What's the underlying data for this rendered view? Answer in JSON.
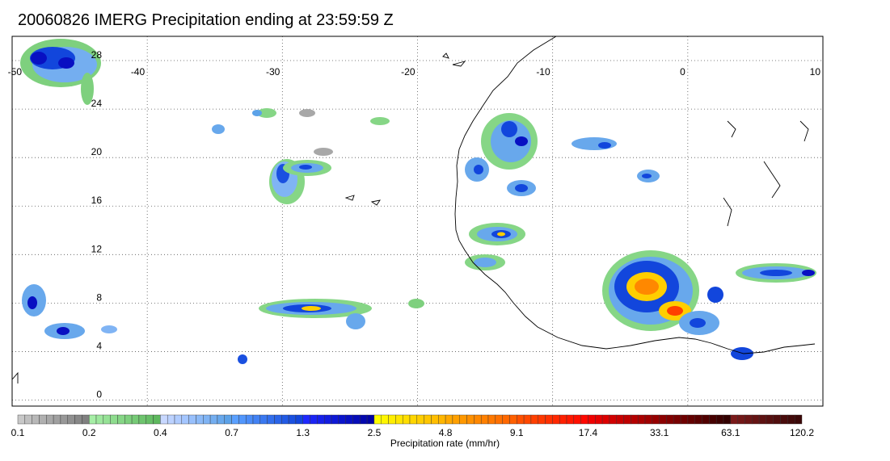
{
  "title": "20060826 IMERG Precipitation ending at 23:59:59 Z",
  "longitude_labels": [
    "-50",
    "-40",
    "-30",
    "-20",
    "-10",
    "0",
    "10"
  ],
  "latitude_labels": [
    "28",
    "24",
    "20",
    "16",
    "12",
    "8",
    "4",
    "0"
  ],
  "map": {
    "lon_range": [
      -50,
      10
    ],
    "lat_range": [
      -0.5,
      30
    ],
    "grid": "dotted",
    "coastline_color": "#000000"
  },
  "legend": {
    "caption": "Precipitation rate (mm/hr)",
    "tick_labels": [
      "0.1",
      "0.2",
      "0.4",
      "0.7",
      "1.3",
      "2.5",
      "4.8",
      "9.1",
      "17.4",
      "33.1",
      "63.1",
      "120.2"
    ],
    "color_groups": [
      {
        "from": "0.1",
        "to": "0.2",
        "shades": [
          "#c8c8c8",
          "#c0c0c0",
          "#b8b8b8",
          "#b0b0b0",
          "#a8a8a8",
          "#a0a0a0",
          "#989898",
          "#909090",
          "#888888",
          "#808080"
        ]
      },
      {
        "from": "0.2",
        "to": "0.4",
        "shades": [
          "#a6eea6",
          "#9ee89e",
          "#96e296",
          "#8edc8e",
          "#86d686",
          "#7ed07e",
          "#76ca76",
          "#6ec46e",
          "#66be66",
          "#5eb85e"
        ]
      },
      {
        "from": "0.4",
        "to": "0.7",
        "shades": [
          "#c8d8ff",
          "#bcd2ff",
          "#b0ccff",
          "#a4c6ff",
          "#98c0fc",
          "#8cbaf8",
          "#80b4f4",
          "#74aef0",
          "#68a8ec",
          "#5ca2e8"
        ]
      },
      {
        "from": "0.7",
        "to": "1.3",
        "shades": [
          "#5aa0ff",
          "#5296fc",
          "#4a8cf8",
          "#4282f4",
          "#3a78f0",
          "#326eec",
          "#2a64e8",
          "#225ae4",
          "#1a50e0",
          "#1246dc"
        ]
      },
      {
        "from": "1.3",
        "to": "2.5",
        "shades": [
          "#1e28ff",
          "#1a24f4",
          "#1620ea",
          "#121ce0",
          "#0e18d6",
          "#0a14cc",
          "#0810c2",
          "#060cb8",
          "#0408ae",
          "#0204a4"
        ]
      },
      {
        "from": "2.5",
        "to": "4.8",
        "shades": [
          "#ffff00",
          "#fff600",
          "#ffee00",
          "#ffe600",
          "#ffde00",
          "#ffd600",
          "#ffce00",
          "#ffc600",
          "#ffbe00",
          "#ffb600"
        ]
      },
      {
        "from": "4.8",
        "to": "9.1",
        "shades": [
          "#ffa800",
          "#ffa000",
          "#ff9800",
          "#ff9000",
          "#ff8800",
          "#ff8000",
          "#ff7800",
          "#ff7000",
          "#ff6800",
          "#ff6000"
        ]
      },
      {
        "from": "9.1",
        "to": "17.4",
        "shades": [
          "#ff5000",
          "#ff4800",
          "#ff4000",
          "#ff3800",
          "#ff3000",
          "#ff2800",
          "#ff2000",
          "#ff1800",
          "#ff1000",
          "#ff0800"
        ]
      },
      {
        "from": "17.4",
        "to": "33.1",
        "shades": [
          "#f00000",
          "#e60000",
          "#dc0000",
          "#d20000",
          "#c80000",
          "#be0000",
          "#b40000",
          "#aa0000",
          "#a00000",
          "#960000"
        ]
      },
      {
        "from": "33.1",
        "to": "63.1",
        "shades": [
          "#8c0000",
          "#820000",
          "#780000",
          "#6e0000",
          "#640000",
          "#5a0000",
          "#500000",
          "#460000",
          "#3c0000",
          "#320000"
        ]
      },
      {
        "from": "63.1",
        "to": "120.2",
        "shades": [
          "#7a1a1a",
          "#731818",
          "#6c1616",
          "#651414",
          "#5e1212",
          "#571010",
          "#500e0e",
          "#490c0c",
          "#420a0a",
          "#3b0808"
        ]
      }
    ]
  }
}
